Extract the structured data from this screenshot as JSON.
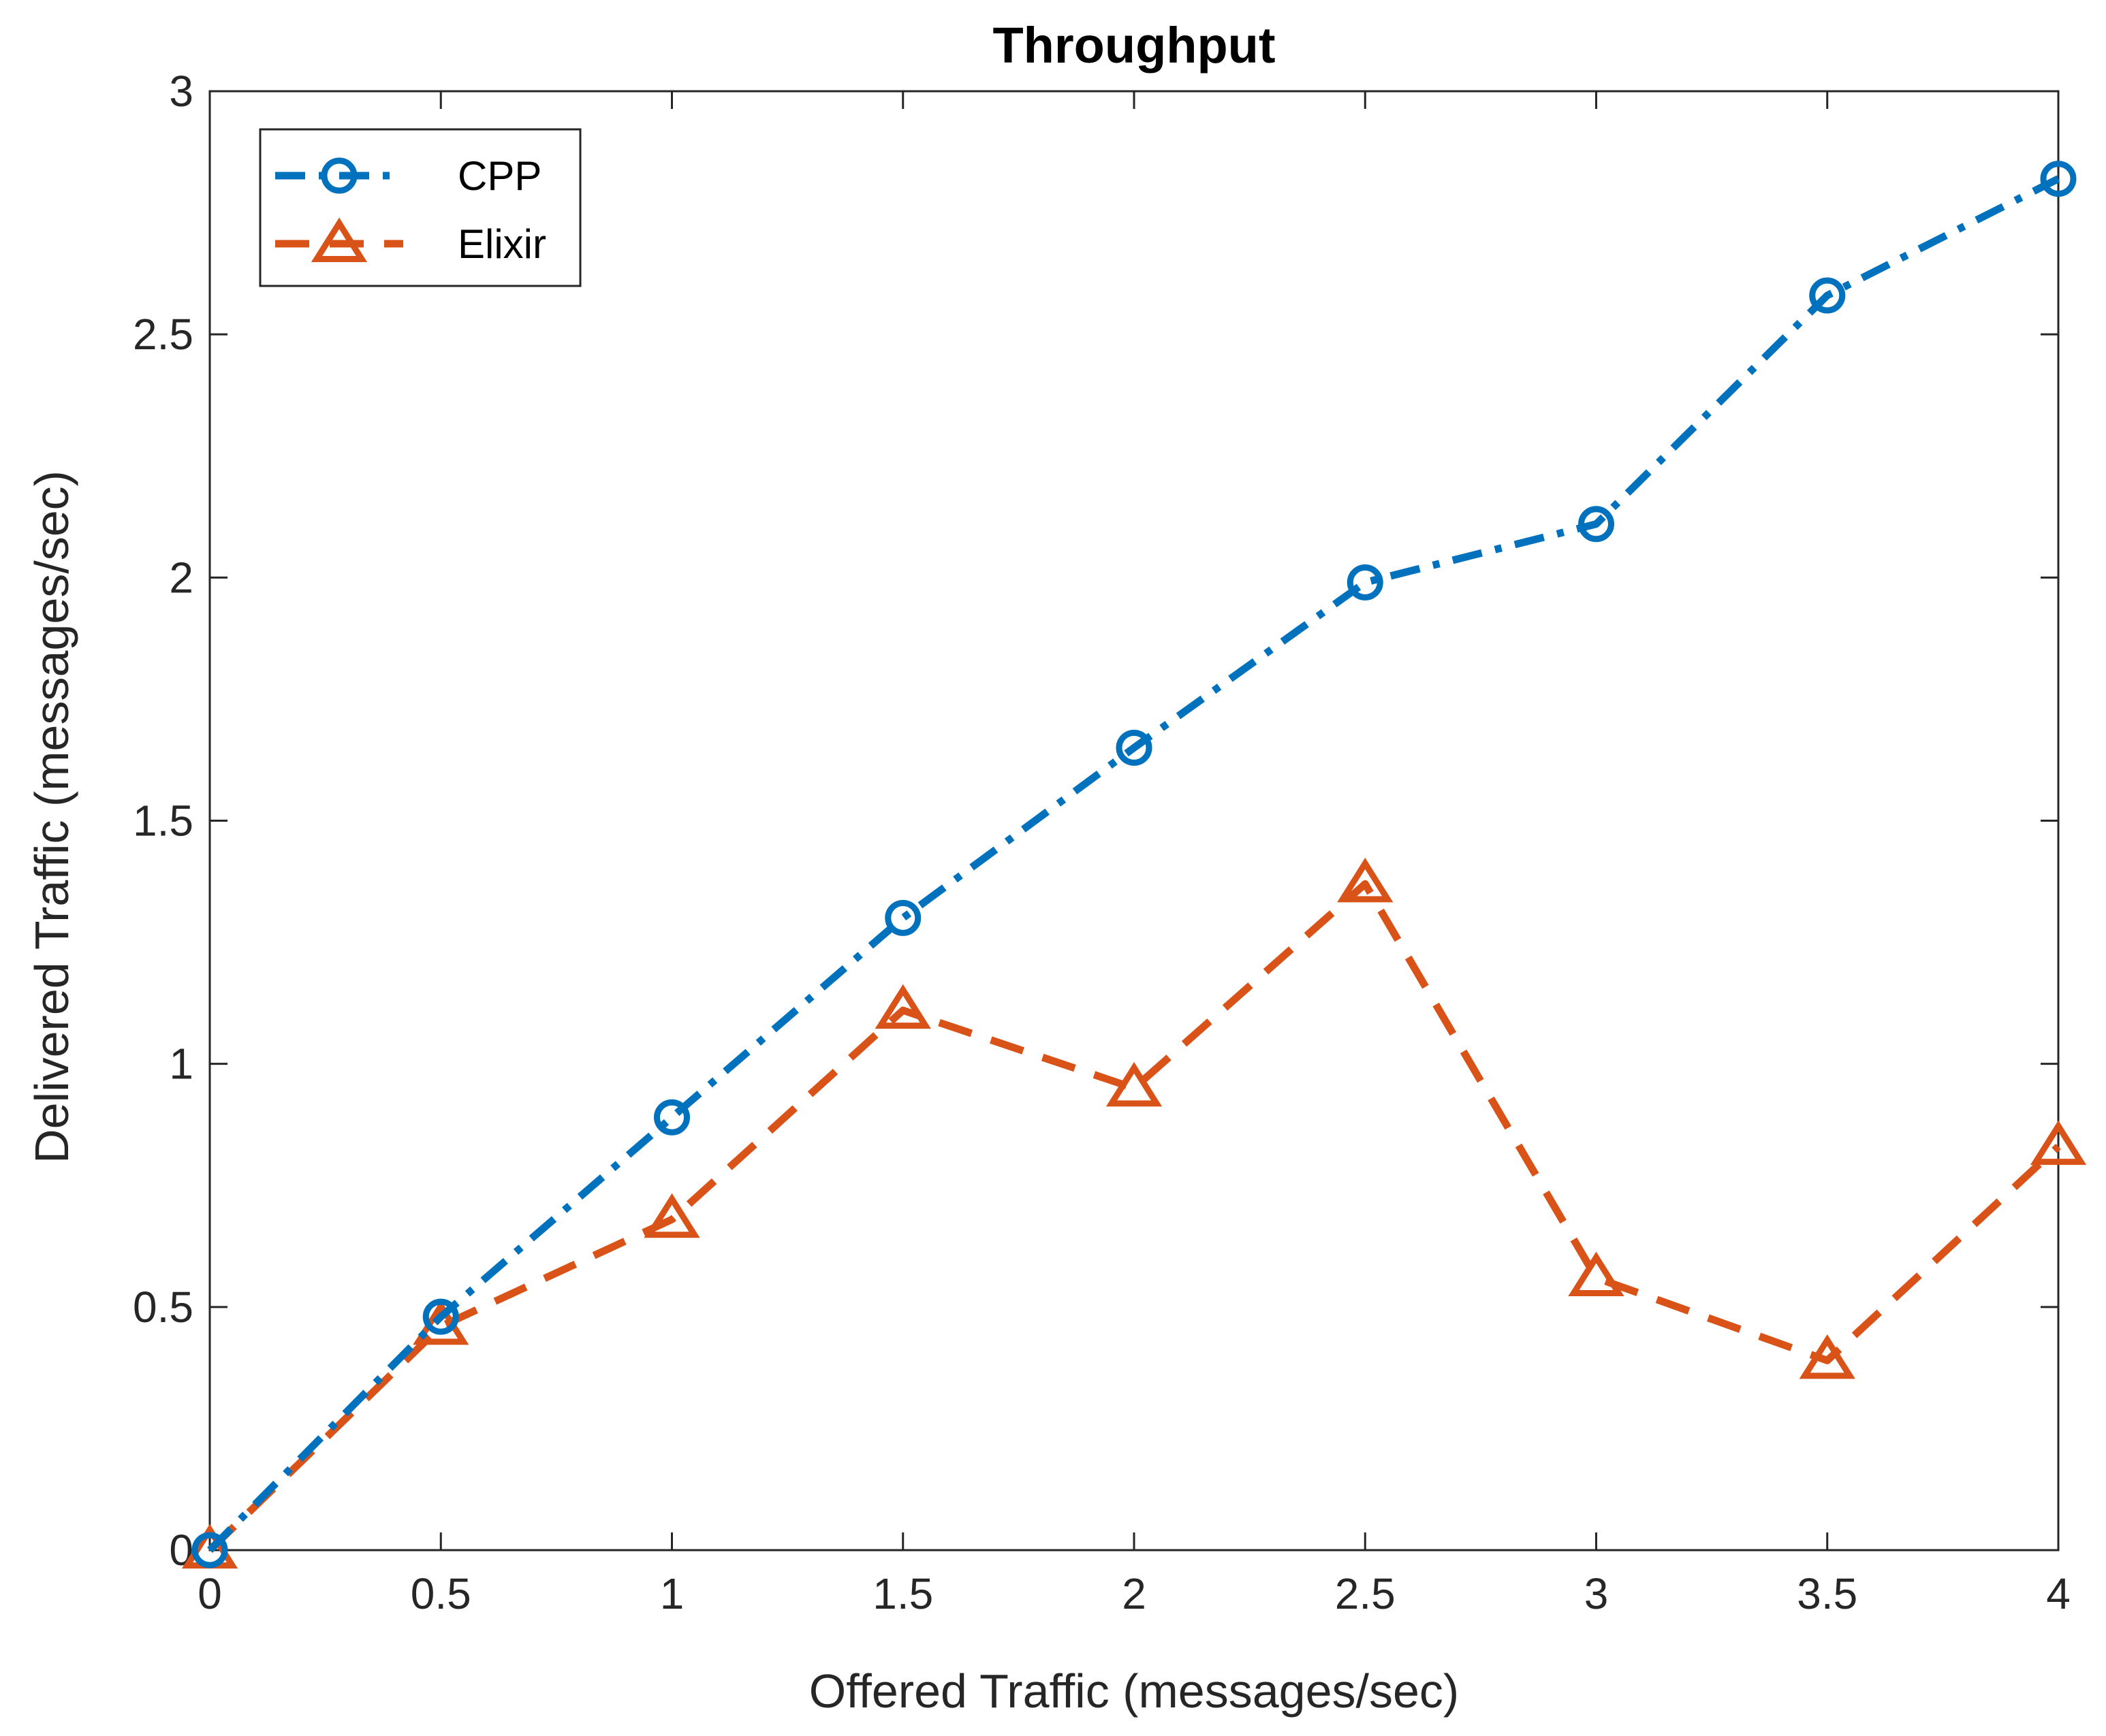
{
  "chart_data": {
    "type": "line",
    "title": "Throughput",
    "xlabel": "Offered Traffic (messages/sec)",
    "ylabel": "Delivered Traffic (messages/sec)",
    "xlim": [
      0,
      4
    ],
    "ylim": [
      0,
      3
    ],
    "xticks": [
      "0",
      "0.5",
      "1",
      "1.5",
      "2",
      "2.5",
      "3",
      "3.5",
      "4"
    ],
    "yticks": [
      "0",
      "0.5",
      "1",
      "1.5",
      "2",
      "2.5",
      "3"
    ],
    "grid": false,
    "legend_position": "top-left",
    "x": [
      0,
      0.5,
      1,
      1.5,
      2,
      2.5,
      3,
      3.5,
      4
    ],
    "series": [
      {
        "name": "CPP",
        "values": [
          0,
          0.48,
          0.89,
          1.3,
          1.65,
          1.99,
          2.11,
          2.58,
          2.82
        ],
        "color": "#0072BD",
        "line_style": "dash-dot",
        "marker": "circle"
      },
      {
        "name": "Elixir",
        "values": [
          0,
          0.46,
          0.68,
          1.11,
          0.95,
          1.37,
          0.56,
          0.39,
          0.83
        ],
        "color": "#D95319",
        "line_style": "dashed",
        "marker": "triangle"
      }
    ]
  }
}
